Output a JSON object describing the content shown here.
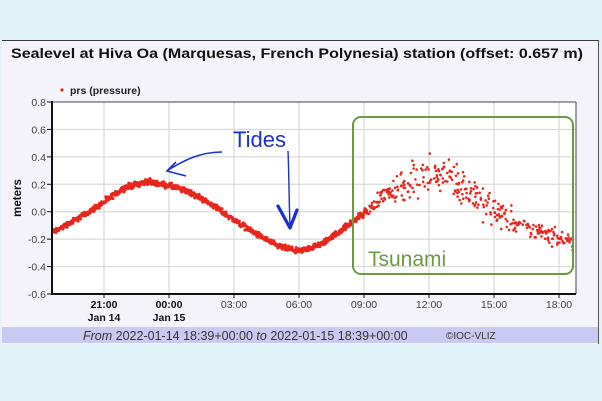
{
  "chart_data": {
    "type": "scatter",
    "title": "Sealevel at Hiva Oa (Marquesas, French Polynesia) station (offset: 0.657 m)",
    "legend": [
      {
        "name": "prs (pressure)",
        "color": "#e8261c"
      }
    ],
    "xlabel": "",
    "ylabel": "meters",
    "ylim": [
      -0.6,
      0.8
    ],
    "yticks": [
      "0.8",
      "0.6",
      "0.4",
      "0.2",
      "0.0",
      "-0.2",
      "-0.4",
      "-0.6"
    ],
    "xticks": [
      {
        "label": "21:00",
        "sub": "Jan 14",
        "bold": true
      },
      {
        "label": "00:00",
        "sub": "Jan 15",
        "bold": true
      },
      {
        "label": "03:00",
        "sub": "",
        "bold": false
      },
      {
        "label": "06:00",
        "sub": "",
        "bold": false
      },
      {
        "label": "09:00",
        "sub": "",
        "bold": false
      },
      {
        "label": "12:00",
        "sub": "",
        "bold": false
      },
      {
        "label": "15:00",
        "sub": "",
        "bold": false
      },
      {
        "label": "18:00",
        "sub": "",
        "bold": false
      }
    ],
    "grid": true,
    "series": [
      {
        "name": "prs (pressure)",
        "x": [
          "18:39",
          "19:00",
          "20:00",
          "21:00",
          "22:00",
          "23:00",
          "00:00",
          "01:00",
          "02:00",
          "03:00",
          "04:00",
          "05:00",
          "06:00",
          "07:00",
          "08:00",
          "09:00",
          "09:30",
          "10:00",
          "11:00",
          "12:00",
          "13:00",
          "14:00",
          "15:00",
          "16:00",
          "17:00",
          "18:00",
          "18:39"
        ],
        "hours_since_jan14_1800": [
          0.65,
          1,
          2,
          3,
          4,
          5,
          6,
          7,
          8,
          9,
          10,
          11,
          12,
          13,
          14,
          15,
          15.5,
          16,
          17,
          18,
          19,
          20,
          21,
          22,
          23,
          24,
          24.65
        ],
        "values": [
          -0.15,
          -0.12,
          -0.03,
          0.07,
          0.18,
          0.22,
          0.19,
          0.14,
          0.05,
          -0.06,
          -0.16,
          -0.25,
          -0.29,
          -0.24,
          -0.13,
          -0.01,
          0.05,
          0.12,
          0.22,
          0.28,
          0.25,
          0.12,
          0.0,
          -0.08,
          -0.15,
          -0.2,
          -0.22
        ],
        "spread": [
          0.03,
          0.03,
          0.03,
          0.03,
          0.03,
          0.03,
          0.03,
          0.03,
          0.03,
          0.03,
          0.03,
          0.03,
          0.03,
          0.03,
          0.03,
          0.04,
          0.08,
          0.12,
          0.2,
          0.22,
          0.2,
          0.18,
          0.15,
          0.13,
          0.1,
          0.1,
          0.08
        ]
      }
    ],
    "range_text": {
      "from_label": "From",
      "from_value": "2022-01-14 18:39+00:00",
      "to_label": "to",
      "to_value": "2022-01-15 18:39+00:00"
    },
    "credit": "©IOC-VLIZ",
    "annotations": [
      {
        "text": "Tides",
        "color": "#1b2fcf",
        "note": "arrows pointing at tidal peak and trough"
      },
      {
        "text": "Tsunami",
        "color": "#6b9a40",
        "note": "rounded box around 09:00-18:39 scatter"
      }
    ]
  }
}
